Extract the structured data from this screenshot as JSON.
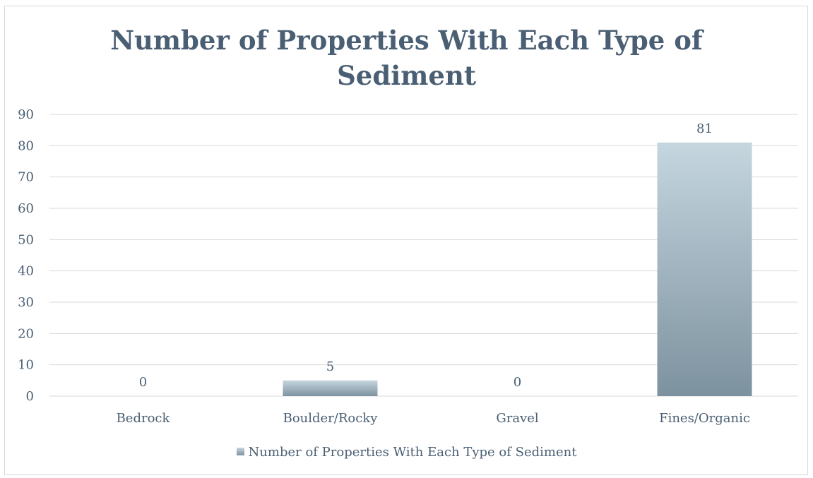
{
  "chart_data": {
    "type": "bar",
    "title_lines": [
      "Number of Properties With Each Type of",
      "Sediment"
    ],
    "categories": [
      "Bedrock",
      "Boulder/Rocky",
      "Gravel",
      "Fines/Organic"
    ],
    "series": [
      {
        "name": "Number of Properties With Each Type of Sediment",
        "values": [
          0,
          5,
          0,
          81
        ]
      }
    ],
    "data_labels": [
      "0",
      "5",
      "0",
      "81"
    ],
    "y_ticks": [
      "0",
      "10",
      "20",
      "30",
      "40",
      "50",
      "60",
      "70",
      "80",
      "90"
    ],
    "ylim": [
      0,
      90
    ],
    "grid": true,
    "legend_position": "bottom",
    "colors": {
      "bar_top": "#c5d6df",
      "bar_bottom": "#7d929f",
      "text": "#4a5f73",
      "grid": "#d9d9d9"
    }
  }
}
